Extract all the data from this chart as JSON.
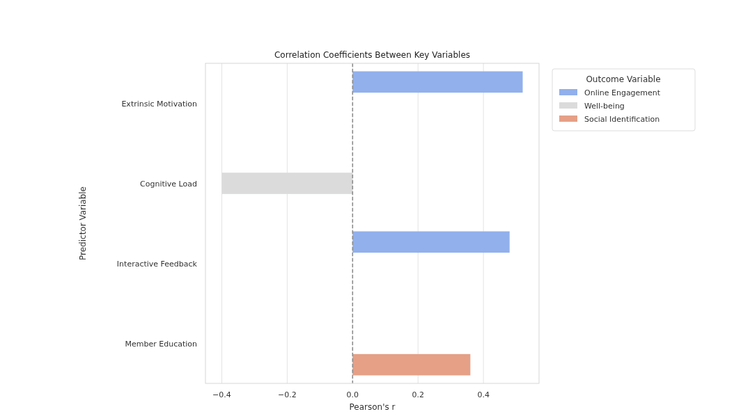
{
  "chart_data": {
    "type": "bar",
    "orientation": "horizontal",
    "title": "Correlation Coefficients Between Key Variables",
    "xlabel": "Pearson's r",
    "ylabel": "Predictor Variable",
    "legend_title": "Outcome Variable",
    "categories": [
      "Extrinsic Motivation",
      "Cognitive Load",
      "Interactive Feedback",
      "Member Education"
    ],
    "series": [
      {
        "name": "Online Engagement",
        "color": "#91b0ec",
        "values": [
          0.52,
          null,
          0.48,
          null
        ]
      },
      {
        "name": "Well-being",
        "color": "#dcdbdb",
        "values": [
          null,
          -0.4,
          null,
          null
        ]
      },
      {
        "name": "Social Identification",
        "color": "#e5a086",
        "values": [
          null,
          null,
          null,
          0.36
        ]
      }
    ],
    "xlim": [
      -0.45,
      0.57
    ],
    "xticks": [
      {
        "value": -0.4,
        "label": "−0.4"
      },
      {
        "value": -0.2,
        "label": "−0.2"
      },
      {
        "value": 0,
        "label": "0.0"
      },
      {
        "value": 0.2,
        "label": "0.2"
      },
      {
        "value": 0.4,
        "label": "0.4"
      }
    ],
    "ref_lines": [
      {
        "axis": "x",
        "value": 0,
        "color": "#888888",
        "line_style": "dashed"
      }
    ],
    "grid": "x",
    "legend": "top right"
  }
}
